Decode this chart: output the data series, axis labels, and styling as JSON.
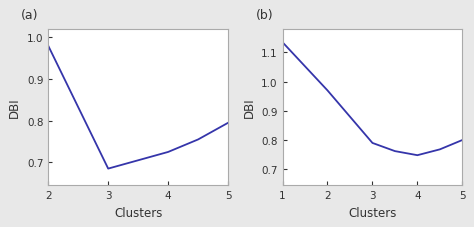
{
  "plot_a": {
    "x": [
      2,
      3,
      3.5,
      4.0,
      4.5,
      5.0
    ],
    "y": [
      0.98,
      0.685,
      0.705,
      0.725,
      0.755,
      0.795
    ],
    "xlabel": "Clusters",
    "ylabel": "DBI",
    "label": "(a)",
    "xlim": [
      2,
      5
    ],
    "ylim": [
      0.645,
      1.02
    ],
    "yticks": [
      0.7,
      0.8,
      0.9,
      1.0
    ],
    "xticks": [
      2,
      3,
      4,
      5
    ]
  },
  "plot_b": {
    "x": [
      1,
      2,
      3,
      3.5,
      4.0,
      4.5,
      5.0
    ],
    "y": [
      1.135,
      0.97,
      0.79,
      0.762,
      0.748,
      0.768,
      0.8
    ],
    "xlabel": "Clusters",
    "ylabel": "DBI",
    "label": "(b)",
    "xlim": [
      1,
      5
    ],
    "ylim": [
      0.645,
      1.18
    ],
    "yticks": [
      0.7,
      0.8,
      0.9,
      1.0,
      1.1
    ],
    "xticks": [
      1,
      2,
      3,
      4,
      5
    ]
  },
  "line_color": "#3535aa",
  "line_width": 1.3,
  "background_color": "#e8e8e8",
  "axes_bg_color": "#ffffff",
  "border_color": "#aaaaaa",
  "text_color": "#333333",
  "label_fontsize": 8.5,
  "tick_fontsize": 7.5,
  "subplot_label_fontsize": 9
}
